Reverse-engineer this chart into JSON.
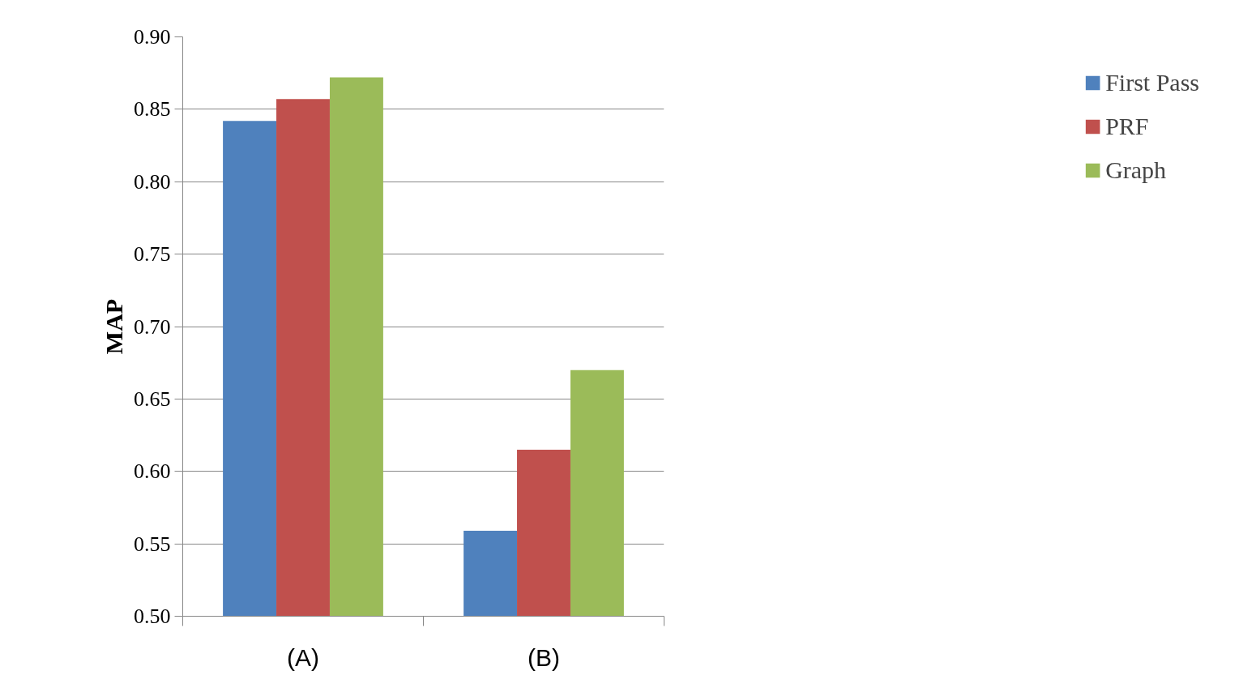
{
  "chart_data": {
    "type": "bar",
    "ylabel": "MAP",
    "categories": [
      "(A)",
      "(B)"
    ],
    "series": [
      {
        "name": "First Pass",
        "color": "#4f81bd",
        "values": [
          0.842,
          0.559
        ]
      },
      {
        "name": "PRF",
        "color": "#c0504d",
        "values": [
          0.857,
          0.615
        ]
      },
      {
        "name": "Graph",
        "color": "#9bbb59",
        "values": [
          0.872,
          0.67
        ]
      }
    ],
    "ylim": [
      0.5,
      0.9
    ],
    "yticks": [
      {
        "value": 0.5,
        "label": "0.50"
      },
      {
        "value": 0.55,
        "label": "0.55"
      },
      {
        "value": 0.6,
        "label": "0.60"
      },
      {
        "value": 0.65,
        "label": "0.65"
      },
      {
        "value": 0.7,
        "label": "0.70"
      },
      {
        "value": 0.75,
        "label": "0.75"
      },
      {
        "value": 0.8,
        "label": "0.80"
      },
      {
        "value": 0.85,
        "label": "0.85"
      },
      {
        "value": 0.9,
        "label": "0.90"
      }
    ],
    "grid": "y",
    "legend": "right"
  }
}
